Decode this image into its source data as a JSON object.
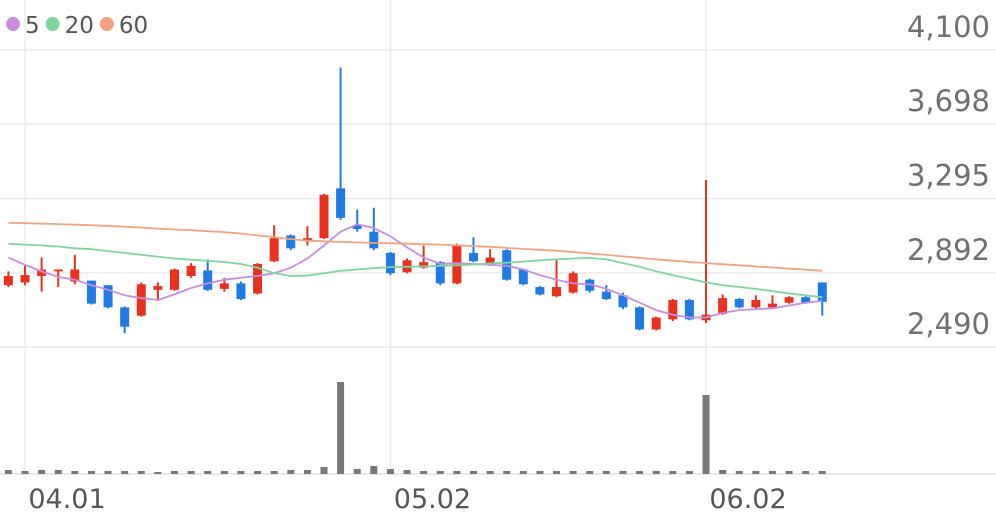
{
  "chart_data": {
    "type": "candlestick",
    "categories": [
      null,
      "04.01",
      null,
      null,
      null,
      null,
      null,
      null,
      null,
      null,
      null,
      null,
      null,
      null,
      null,
      null,
      null,
      null,
      null,
      null,
      null,
      null,
      null,
      "05.02",
      null,
      null,
      null,
      null,
      null,
      null,
      null,
      null,
      null,
      null,
      null,
      null,
      null,
      null,
      null,
      null,
      null,
      null,
      "06.02",
      null,
      null,
      null,
      null,
      null,
      null,
      null
    ],
    "open": [
      2825,
      2840,
      2875,
      2900,
      2845,
      2850,
      2825,
      2705,
      2660,
      2800,
      2800,
      2875,
      2905,
      2805,
      2835,
      2780,
      2955,
      3095,
      3065,
      3080,
      3350,
      3150,
      3115,
      3000,
      2895,
      2920,
      2950,
      2835,
      3000,
      2940,
      3015,
      2910,
      2815,
      2765,
      2785,
      2855,
      2790,
      2770,
      2705,
      2585,
      2640,
      2745,
      2635,
      2670,
      2750,
      2705,
      2705,
      2730,
      2760,
      2840
    ],
    "high": [
      2900,
      2930,
      2975,
      2910,
      2990,
      2850,
      2825,
      2710,
      2840,
      2840,
      2915,
      2945,
      2965,
      2865,
      2845,
      2945,
      3150,
      3100,
      3145,
      3320,
      4005,
      3235,
      3245,
      3005,
      2970,
      3040,
      2955,
      3050,
      3085,
      3020,
      3020,
      2915,
      2820,
      2965,
      2900,
      2860,
      2825,
      2785,
      2710,
      2655,
      2750,
      2750,
      3395,
      2775,
      2755,
      2770,
      2770,
      2765,
      2765,
      2840
    ],
    "low": [
      2815,
      2825,
      2790,
      2815,
      2830,
      2720,
      2700,
      2565,
      2655,
      2740,
      2795,
      2865,
      2795,
      2790,
      2745,
      2775,
      2950,
      3015,
      3040,
      3075,
      3180,
      3115,
      3015,
      2880,
      2890,
      2915,
      2825,
      2830,
      2950,
      2930,
      2850,
      2825,
      2770,
      2760,
      2780,
      2785,
      2745,
      2695,
      2580,
      2580,
      2630,
      2635,
      2620,
      2665,
      2700,
      2700,
      2700,
      2725,
      2725,
      2660
    ],
    "close": [
      2875,
      2880,
      2910,
      2910,
      2910,
      2725,
      2705,
      2600,
      2830,
      2820,
      2910,
      2930,
      2800,
      2835,
      2750,
      2940,
      3080,
      3025,
      3080,
      3315,
      3190,
      3130,
      3025,
      2890,
      2960,
      2950,
      2835,
      3040,
      2955,
      2975,
      2855,
      2830,
      2775,
      2815,
      2890,
      2795,
      2750,
      2705,
      2585,
      2650,
      2745,
      2640,
      2665,
      2755,
      2705,
      2745,
      2725,
      2760,
      2730,
      2735
    ],
    "up_color": "#e8321e",
    "down_color": "#1e7be6",
    "series": [
      {
        "name": "5",
        "color": "#c98ee0",
        "values": [
          2975,
          2935,
          2900,
          2870,
          2855,
          2825,
          2800,
          2770,
          2755,
          2745,
          2775,
          2810,
          2835,
          2855,
          2865,
          2875,
          2890,
          2920,
          2970,
          3040,
          3115,
          3155,
          3135,
          3090,
          3030,
          2975,
          2940,
          2945,
          2940,
          2935,
          2930,
          2910,
          2880,
          2855,
          2835,
          2830,
          2805,
          2770,
          2730,
          2690,
          2665,
          2650,
          2650,
          2675,
          2690,
          2695,
          2700,
          2715,
          2730,
          2740
        ]
      },
      {
        "name": "20",
        "color": "#7dd69b",
        "values": [
          3050,
          3045,
          3040,
          3035,
          3025,
          3020,
          3010,
          3000,
          2990,
          2980,
          2970,
          2963,
          2957,
          2951,
          2940,
          2920,
          2890,
          2875,
          2877,
          2890,
          2903,
          2910,
          2917,
          2923,
          2925,
          2927,
          2930,
          2933,
          2937,
          2943,
          2947,
          2953,
          2960,
          2965,
          2970,
          2973,
          2965,
          2945,
          2925,
          2900,
          2880,
          2860,
          2840,
          2825,
          2815,
          2805,
          2793,
          2780,
          2770,
          2760
        ]
      },
      {
        "name": "60",
        "color": "#f2a27e",
        "values": [
          3163,
          3161,
          3159,
          3156,
          3153,
          3150,
          3146,
          3142,
          3137,
          3132,
          3127,
          3123,
          3118,
          3113,
          3105,
          3095,
          3085,
          3075,
          3067,
          3063,
          3060,
          3057,
          3054,
          3052,
          3050,
          3047,
          3045,
          3041,
          3037,
          3033,
          3027,
          3022,
          3017,
          3012,
          3005,
          2997,
          2989,
          2981,
          2973,
          2965,
          2958,
          2951,
          2945,
          2939,
          2933,
          2927,
          2921,
          2915,
          2909,
          2903
        ]
      }
    ],
    "volume": {
      "color": "#777777",
      "ylim": [
        0,
        100
      ],
      "values": [
        4,
        3,
        4,
        4,
        3,
        3,
        3,
        3,
        3,
        2,
        3,
        3,
        3,
        3,
        3,
        3,
        3,
        4,
        4,
        7,
        92,
        5,
        8,
        5,
        4,
        3,
        3,
        3,
        3,
        3,
        3,
        3,
        3,
        3,
        3,
        3,
        3,
        3,
        3,
        3,
        3,
        3,
        79,
        4,
        3,
        3,
        3,
        3,
        3,
        3
      ]
    },
    "ylim": [
      2490,
      4100
    ],
    "yticks": [
      {
        "value": 4100,
        "label": "4,100"
      },
      {
        "value": 3698,
        "label": "3,698"
      },
      {
        "value": 3295,
        "label": "3,295"
      },
      {
        "value": 2892,
        "label": "2,892"
      },
      {
        "value": 2490,
        "label": "2,490"
      }
    ],
    "grid": true
  }
}
